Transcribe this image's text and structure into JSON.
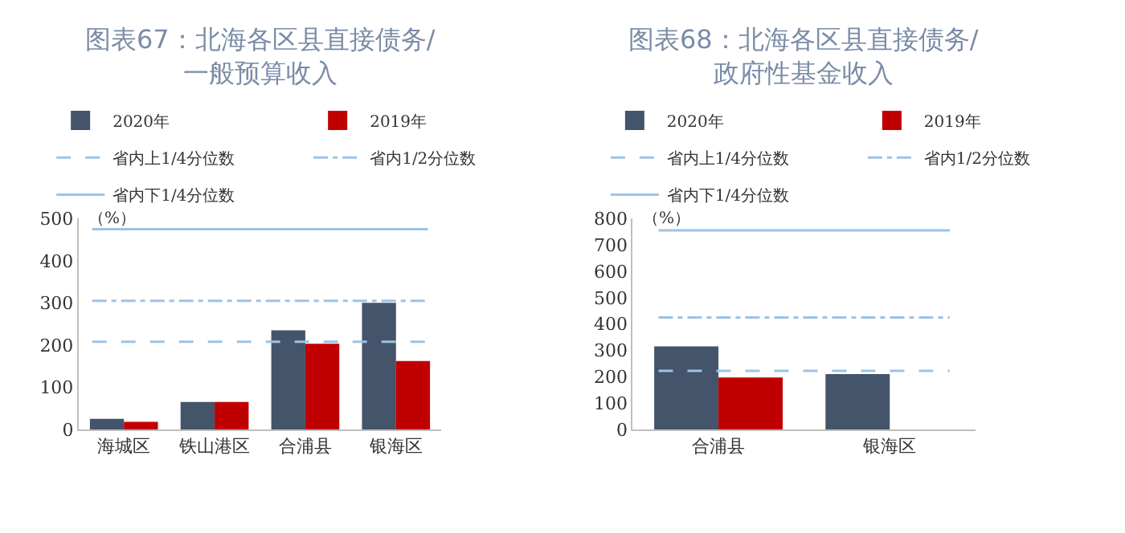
{
  "chart_data": [
    {
      "type": "bar",
      "title": "图表67：北海各区县直接债务/\n一般预算收入",
      "ylabel": "（%）",
      "categories": [
        "海城区",
        "铁山港区",
        "合浦县",
        "银海区"
      ],
      "series": [
        {
          "name": "2020年",
          "color": "#44546a",
          "values": [
            25,
            65,
            235,
            300
          ]
        },
        {
          "name": "2019年",
          "color": "#c00000",
          "values": [
            18,
            65,
            203,
            162
          ]
        }
      ],
      "ref_lines": [
        {
          "axis": "y",
          "value": 208,
          "label": "省内上1/4分位数",
          "color": "#9dc3e6",
          "line_style": "dashed"
        },
        {
          "axis": "y",
          "value": 305,
          "label": "省内1/2分位数",
          "color": "#9dc3e6",
          "line_style": "dashdot"
        },
        {
          "axis": "y",
          "value": 475,
          "label": "省内下1/4分位数",
          "color": "#9dc3e6",
          "line_style": "solid"
        }
      ],
      "ylim": [
        0,
        500
      ],
      "yticks": [
        0,
        100,
        200,
        300,
        400,
        500
      ],
      "legend": "top"
    },
    {
      "type": "bar",
      "title": "图表68：北海各区县直接债务/\n政府性基金收入",
      "ylabel": "（%）",
      "categories": [
        "合浦县",
        "银海区"
      ],
      "series": [
        {
          "name": "2020年",
          "color": "#44546a",
          "values": [
            315,
            210
          ]
        },
        {
          "name": "2019年",
          "color": "#c00000",
          "values": [
            197,
            null
          ]
        }
      ],
      "ref_lines": [
        {
          "axis": "y",
          "value": 222,
          "label": "省内上1/4分位数",
          "color": "#9dc3e6",
          "line_style": "dashed"
        },
        {
          "axis": "y",
          "value": 425,
          "label": "省内1/2分位数",
          "color": "#9dc3e6",
          "line_style": "dashdot"
        },
        {
          "axis": "y",
          "value": 755,
          "label": "省内下1/4分位数",
          "color": "#9dc3e6",
          "line_style": "solid"
        }
      ],
      "ylim": [
        0,
        800
      ],
      "yticks": [
        0,
        100,
        200,
        300,
        400,
        500,
        600,
        700,
        800
      ],
      "legend": "top"
    }
  ]
}
